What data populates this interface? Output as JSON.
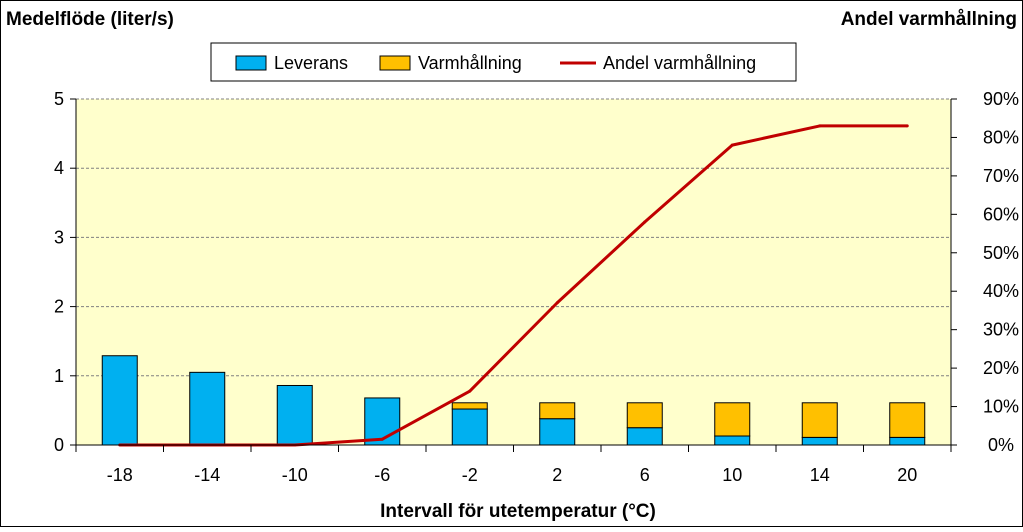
{
  "colors": {
    "plot_background": "#FFFFCC",
    "leverans": "#00B0F0",
    "varmhallning": "#FFC000",
    "andel_line": "#C00000",
    "gridline": "#808080"
  },
  "chart_data": {
    "type": "bar",
    "stacked": true,
    "title": "",
    "xlabel": "Intervall för utetemperatur (°C)",
    "ylabel_left": "Medelflöde (liter/s)",
    "ylabel_right": "Andel varmhållning",
    "categories": [
      "-18",
      "-14",
      "-10",
      "-6",
      "-2",
      "2",
      "6",
      "10",
      "14",
      "20"
    ],
    "ylim": [
      0,
      5
    ],
    "yticks": [
      "0",
      "1",
      "2",
      "3",
      "4",
      "5"
    ],
    "y2lim": [
      0,
      90
    ],
    "y2ticks": [
      "0%",
      "10%",
      "20%",
      "30%",
      "40%",
      "50%",
      "60%",
      "70%",
      "80%",
      "90%"
    ],
    "grid": true,
    "legend_position": "top",
    "series": [
      {
        "name": "Leverans",
        "kind": "bar",
        "axis": "left",
        "values": [
          1.29,
          1.05,
          0.86,
          0.68,
          0.52,
          0.38,
          0.25,
          0.13,
          0.11,
          0.11
        ]
      },
      {
        "name": "Varmhållning",
        "kind": "bar",
        "axis": "left",
        "values": [
          0.0,
          0.0,
          0.0,
          0.0,
          0.09,
          0.23,
          0.36,
          0.48,
          0.5,
          0.5
        ]
      },
      {
        "name": "Andel varmhållning",
        "kind": "line",
        "axis": "right",
        "values": [
          0,
          0,
          0,
          1.5,
          14,
          37,
          58,
          78,
          83,
          83
        ]
      }
    ]
  }
}
